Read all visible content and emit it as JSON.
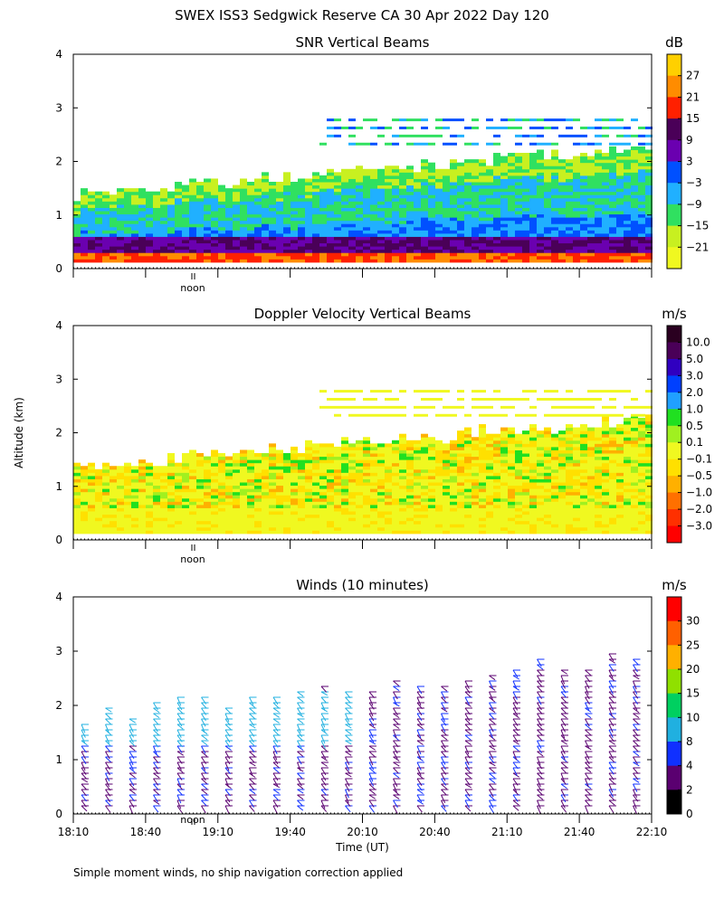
{
  "chart_data": [
    {
      "type": "heatmap",
      "title": "SNR Vertical Beams",
      "ylabel": "",
      "units": "dB",
      "ylim": [
        0,
        4
      ],
      "y_ticks": [
        "0",
        "1",
        "2",
        "3",
        "4"
      ],
      "colorbar": {
        "labels": [
          "27",
          "21",
          "15",
          "9",
          "3",
          "−3",
          "−9",
          "−15",
          "−21"
        ],
        "colors": [
          "#ffd000",
          "#ff8c00",
          "#ff2000",
          "#4a0058",
          "#6a00b0",
          "#0050ff",
          "#20b0ff",
          "#30e060",
          "#c8f020",
          "#f0f820"
        ]
      },
      "noon_label": "noon"
    },
    {
      "type": "heatmap",
      "title": "Doppler Velocity Vertical Beams",
      "ylabel": "Altitude (km)",
      "units": "m/s",
      "ylim": [
        0,
        4
      ],
      "y_ticks": [
        "0",
        "1",
        "2",
        "3",
        "4"
      ],
      "colorbar": {
        "labels": [
          "10.0",
          "5.0",
          "3.0",
          "2.0",
          "1.0",
          "0.5",
          "0.1",
          "−0.1",
          "−0.5",
          "−1.0",
          "−2.0",
          "−3.0"
        ],
        "colors": [
          "#2a0020",
          "#4a0058",
          "#3000c0",
          "#0040ff",
          "#20a0ff",
          "#20e020",
          "#a0f020",
          "#f0f820",
          "#ffe000",
          "#ffb000",
          "#ff7000",
          "#ff3000",
          "#ff0000"
        ]
      },
      "noon_label": "noon"
    },
    {
      "type": "scatter",
      "title": "Winds (10 minutes)",
      "xlabel": "Time (UT)",
      "units": "m/s",
      "ylim": [
        0,
        4
      ],
      "y_ticks": [
        "0",
        "1",
        "2",
        "3",
        "4"
      ],
      "x_ticks": [
        "18:10",
        "18:40",
        "19:10",
        "19:40",
        "20:10",
        "20:40",
        "21:10",
        "21:40",
        "22:10"
      ],
      "colorbar": {
        "labels": [
          "30",
          "25",
          "20",
          "15",
          "10",
          "8",
          "4",
          "2",
          "0"
        ],
        "colors": [
          "#ff0000",
          "#ff6000",
          "#ffb000",
          "#90e000",
          "#00d060",
          "#20b0e0",
          "#1030ff",
          "#5a0070",
          "#000000"
        ]
      },
      "noon_label": "noon"
    }
  ],
  "header": {
    "title": "SWEX ISS3 Sedgwick Reserve CA  30 Apr 2022 Day 120"
  },
  "footnote": "Simple moment winds, no ship navigation correction applied"
}
